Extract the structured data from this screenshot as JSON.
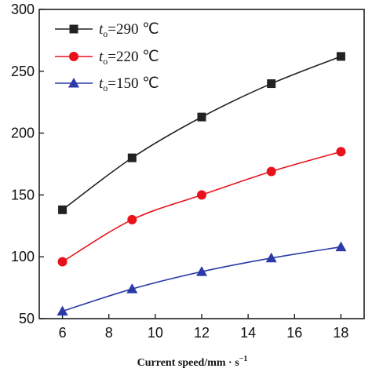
{
  "chart_data": {
    "type": "line",
    "xlabel": "Current speed/mm · s",
    "xlabel_sup": "−1",
    "ylabel": "",
    "xlim": [
      5,
      19
    ],
    "ylim": [
      50,
      300
    ],
    "x_ticks": [
      "6",
      "8",
      "10",
      "12",
      "14",
      "16",
      "18"
    ],
    "y_ticks": [
      "50",
      "100",
      "150",
      "200",
      "250",
      "300"
    ],
    "grid": false,
    "legend_position": "top-left",
    "x": [
      6,
      9,
      12,
      15,
      18
    ],
    "series": [
      {
        "name_main": "t",
        "name_sub": "o",
        "name_rest": "=290 ℃",
        "marker": "square",
        "color": "#222222",
        "values": [
          138,
          180,
          213,
          240,
          262
        ]
      },
      {
        "name_main": "t",
        "name_sub": "o",
        "name_rest": "=220 ℃",
        "marker": "circle",
        "color": "#e8121b",
        "values": [
          96,
          130,
          150,
          169,
          185
        ]
      },
      {
        "name_main": "t",
        "name_sub": "o",
        "name_rest": "=150 ℃",
        "marker": "triangle",
        "color": "#2b3aa8",
        "values": [
          56,
          74,
          88,
          99,
          108
        ]
      }
    ]
  }
}
